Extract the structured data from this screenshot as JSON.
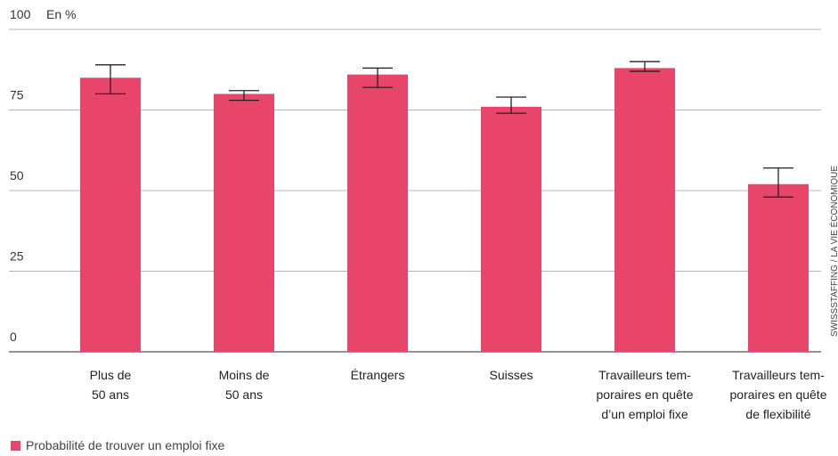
{
  "chart_data": {
    "type": "bar",
    "unit_label": "En %",
    "categories": [
      [
        "Plus de",
        "50 ans"
      ],
      [
        "Moins de",
        "50 ans"
      ],
      [
        "Étrangers"
      ],
      [
        "Suisses"
      ],
      [
        "Travailleurs tem-",
        "poraires en quête",
        "d’un emploi fixe"
      ],
      [
        "Travailleurs tem-",
        "poraires en quête",
        "de flexibilité"
      ]
    ],
    "series": [
      {
        "name": "Probabilité de trouver un emploi fixe",
        "color": "#e8456a",
        "values": [
          85,
          80,
          86,
          76,
          88,
          52
        ],
        "error_low": [
          80,
          78,
          82,
          74,
          87,
          48
        ],
        "error_high": [
          89,
          81,
          88,
          79,
          90,
          57
        ]
      }
    ],
    "ylim": [
      0,
      100
    ],
    "yticks": [
      0,
      25,
      50,
      75,
      100
    ],
    "grid": true,
    "legend_position": "bottom-left",
    "source": "SWISSSTAFFING / LA VIE ÉCONOMIQUE"
  }
}
